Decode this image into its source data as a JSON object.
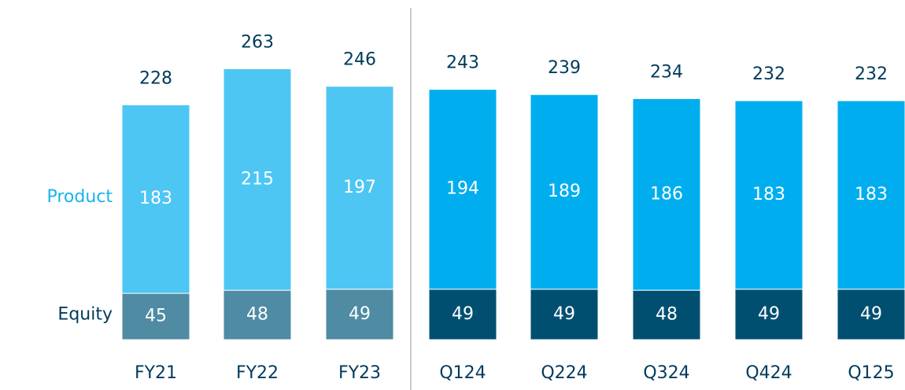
{
  "chart_data": {
    "type": "stacked_bar",
    "categories": [
      "FY21",
      "FY22",
      "FY23",
      "Q124",
      "Q224",
      "Q324",
      "Q424",
      "Q125"
    ],
    "series": [
      {
        "name": "Equity",
        "colors": [
          "#4f8ba3",
          "#4f8ba3",
          "#4f8ba3",
          "#004f71",
          "#004f71",
          "#004f71",
          "#004f71",
          "#004f71"
        ],
        "values": [
          45,
          48,
          49,
          49,
          49,
          48,
          49,
          49
        ]
      },
      {
        "name": "Product",
        "colors": [
          "#4dc6f4",
          "#4dc6f4",
          "#4dc6f4",
          "#00aeef",
          "#00aeef",
          "#00aeef",
          "#00aeef",
          "#00aeef"
        ],
        "values": [
          183,
          215,
          197,
          194,
          189,
          186,
          183,
          183
        ]
      }
    ],
    "totals": [
      228,
      263,
      246,
      243,
      239,
      234,
      232,
      232
    ],
    "ylim": [
      0,
      300
    ]
  }
}
